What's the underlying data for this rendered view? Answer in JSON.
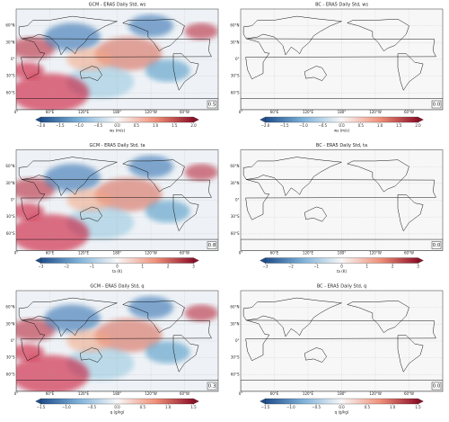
{
  "xlim": [
    0,
    360
  ],
  "ylim": [
    -90,
    90
  ],
  "lon_ticks": [
    {
      "value": 0,
      "label": "0°"
    },
    {
      "value": 60,
      "label": "60°E"
    },
    {
      "value": 120,
      "label": "120°E"
    },
    {
      "value": 180,
      "label": "180°"
    },
    {
      "value": 240,
      "label": "120°W"
    },
    {
      "value": 300,
      "label": "60°W"
    }
  ],
  "lat_ticks": [
    {
      "value": 60,
      "label": "60°N"
    },
    {
      "value": 30,
      "label": "30°N"
    },
    {
      "value": 0,
      "label": "0°"
    },
    {
      "value": -30,
      "label": "30°S"
    },
    {
      "value": -60,
      "label": "60°S"
    }
  ],
  "rows": [
    {
      "colorbar": {
        "label": "ws (m/s)",
        "lim": [
          -2,
          2
        ],
        "ticks": [
          {
            "value": -2,
            "label": "−2.0"
          },
          {
            "value": -1.5,
            "label": "−1.5"
          },
          {
            "value": -1,
            "label": "−1.0"
          },
          {
            "value": -0.5,
            "label": "−0.5"
          },
          {
            "value": 0,
            "label": "0.0"
          },
          {
            "value": 0.5,
            "label": "0.5"
          },
          {
            "value": 1,
            "label": "1.0"
          },
          {
            "value": 1.5,
            "label": "1.5"
          },
          {
            "value": 2,
            "label": "2.0"
          }
        ]
      },
      "panels": [
        {
          "title": "GCM - ERA5 Daily Std, ws",
          "score": 0.5
        },
        {
          "title": "BC - ERA5 Daily Std, ws",
          "score": {
            "value": 0,
            "label": "0.0"
          }
        }
      ]
    },
    {
      "colorbar": {
        "label": "ta (K)",
        "lim": [
          -3,
          3
        ],
        "ticks": [
          {
            "value": -3,
            "label": "−3"
          },
          {
            "value": -2,
            "label": "−2"
          },
          {
            "value": -1,
            "label": "−1"
          },
          0,
          1,
          2,
          3
        ]
      },
      "panels": [
        {
          "title": "GCM - ERA5 Daily Std, ta",
          "score": 0.8
        },
        {
          "title": "BC - ERA5 Daily Std, ta",
          "score": {
            "value": 0,
            "label": "0.0"
          }
        }
      ]
    },
    {
      "colorbar": {
        "label": "q (g/kg)",
        "lim": [
          -1.5,
          1.5
        ],
        "ticks": [
          {
            "value": -1.5,
            "label": "−1.5"
          },
          {
            "value": -1,
            "label": "−1.0"
          },
          {
            "value": -0.5,
            "label": "−0.5"
          },
          {
            "value": 0,
            "label": "0.0"
          },
          {
            "value": 0.5,
            "label": "0.5"
          },
          {
            "value": 1,
            "label": "1.0"
          },
          {
            "value": 1.5,
            "label": "1.5"
          }
        ]
      },
      "panels": [
        {
          "title": "GCM - ERA5 Daily Std, q",
          "score": 0.3
        },
        {
          "title": "BC - ERA5 Daily Std, q",
          "score": {
            "value": 0,
            "label": "0.0"
          }
        }
      ]
    }
  ]
}
